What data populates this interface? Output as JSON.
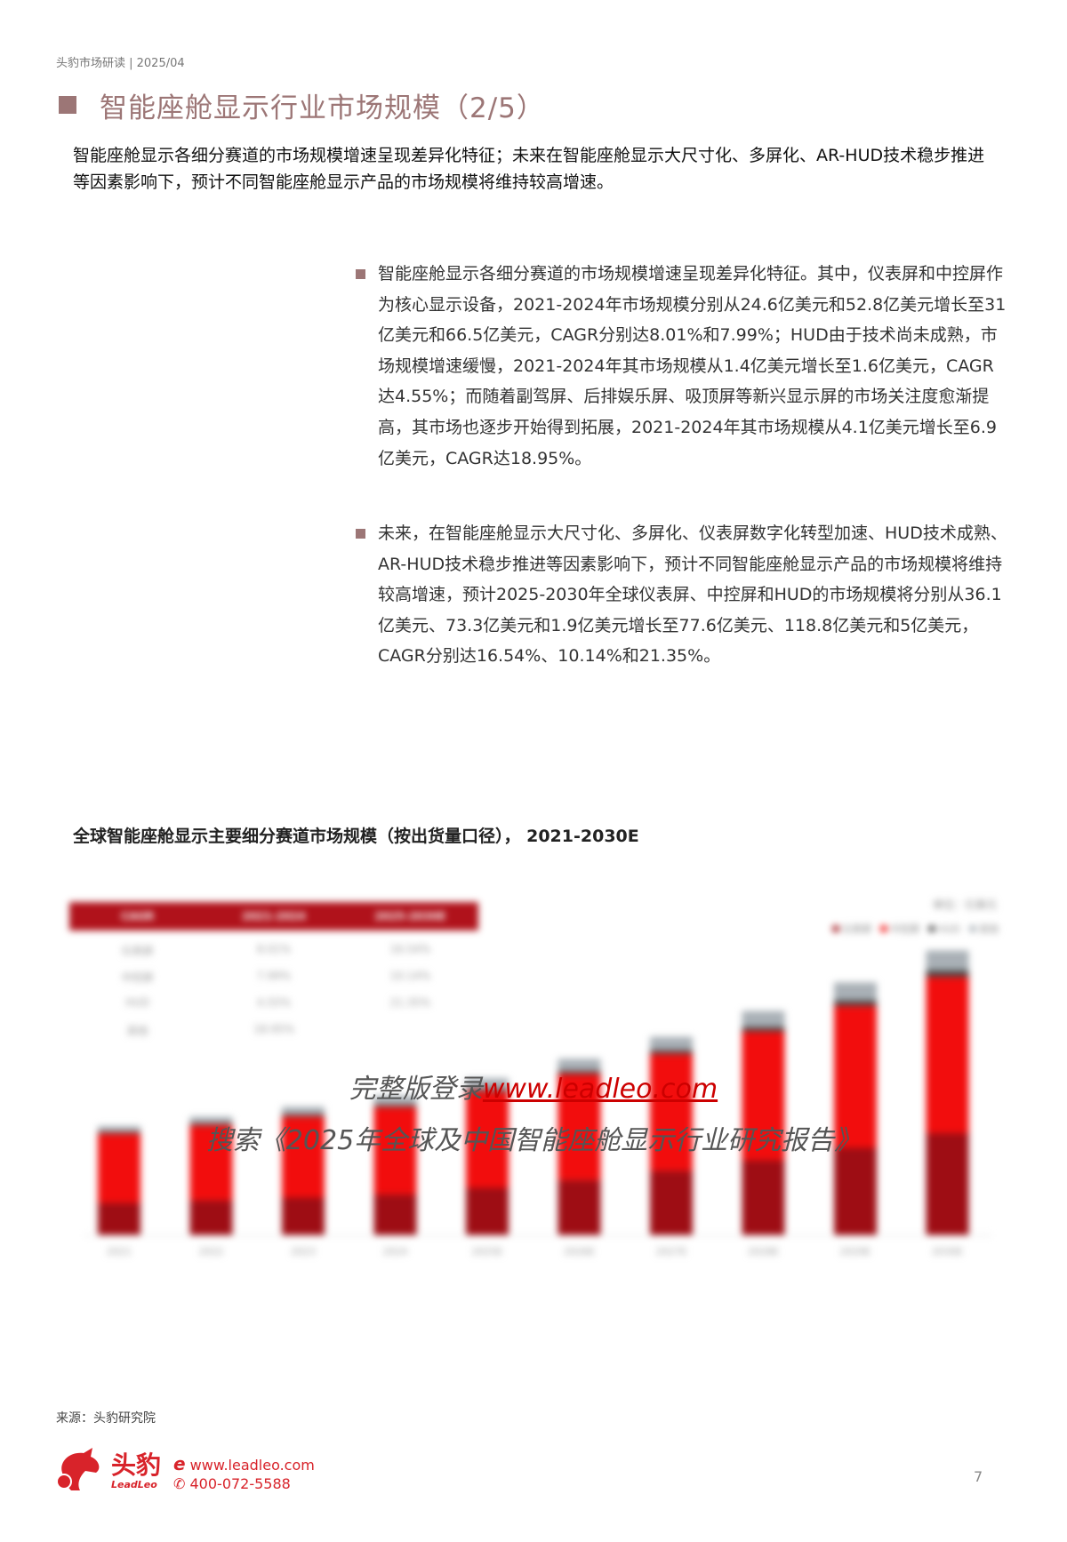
{
  "header": {
    "text": "头豹市场研读 | 2025/04"
  },
  "title": "智能座舱显示行业市场规模（2/5）",
  "intro": "智能座舱显示各细分赛道的市场规模增速呈现差异化特征；未来在智能座舱显示大尺寸化、多屏化、AR-HUD技术稳步推进等因素影响下，预计不同智能座舱显示产品的市场规模将维持较高增速。",
  "bullets": [
    "智能座舱显示各细分赛道的市场规模增速呈现差异化特征。其中，仪表屏和中控屏作为核心显示设备，2021-2024年市场规模分别从24.6亿美元和52.8亿美元增长至31亿美元和66.5亿美元，CAGR分别达8.01%和7.99%；HUD由于技术尚未成熟，市场规模增速缓慢，2021-2024年其市场规模从1.4亿美元增长至1.6亿美元，CAGR达4.55%；而随着副驾屏、后排娱乐屏、吸顶屏等新兴显示屏的市场关注度愈渐提高，其市场也逐步开始得到拓展，2021-2024年其市场规模从4.1亿美元增长至6.9亿美元，CAGR达18.95%。",
    "未来，在智能座舱显示大尺寸化、多屏化、仪表屏数字化转型加速、HUD技术成熟、AR-HUD技术稳步推进等因素影响下，预计不同智能座舱显示产品的市场规模将维持较高增速，预计2025-2030年全球仪表屏、中控屏和HUD的市场规模将分别从36.1亿美元、73.3亿美元和1.9亿美元增长至77.6亿美元、118.8亿美元和5亿美元，CAGR分别达16.54%、10.14%和21.35%。"
  ],
  "chart": {
    "title": "全球智能座舱显示主要细分赛道市场规模（按出货量口径），  2021-2030E",
    "unit": "单位：亿美元",
    "cagr_table": {
      "headers": [
        "CAGR",
        "2021-2024",
        "2025-2030E"
      ],
      "rows": [
        [
          "仪表屏",
          "8.01%",
          "16.54%"
        ],
        [
          "中控屏",
          "7.99%",
          "10.14%"
        ],
        [
          "HUD",
          "4.55%",
          "21.35%"
        ],
        [
          "其他",
          "18.95%",
          ""
        ]
      ]
    }
  },
  "chart_data": {
    "type": "bar",
    "stacked": true,
    "categories": [
      "2021",
      "2022",
      "2023",
      "2024",
      "2025E",
      "2026E",
      "2027E",
      "2028E",
      "2029E",
      "2030E"
    ],
    "series": [
      {
        "name": "仪表屏",
        "color": "#9e0d14",
        "values": [
          24.6,
          26.6,
          28.7,
          31.0,
          36.1,
          42.0,
          49.0,
          57.0,
          66.5,
          77.6
        ]
      },
      {
        "name": "中控屏",
        "color": "#f20d0d",
        "values": [
          52.8,
          57.0,
          61.6,
          66.5,
          73.3,
          80.7,
          88.9,
          97.9,
          107.9,
          118.8
        ]
      },
      {
        "name": "HUD",
        "color": "#4a4a4a",
        "values": [
          1.4,
          1.5,
          1.5,
          1.6,
          1.9,
          2.4,
          2.9,
          3.5,
          4.2,
          5.0
        ]
      },
      {
        "name": "其他",
        "color": "#a9b0b6",
        "values": [
          4.1,
          4.9,
          5.8,
          6.9,
          8.0,
          9.0,
          10.0,
          12.0,
          13.5,
          15.0
        ]
      }
    ],
    "ylabel": "单位：亿美元",
    "grid": false,
    "legend": "top-right"
  },
  "watermark": {
    "line1_prefix": "完整版登录",
    "line1_link": "www.leadleo.com",
    "line2": "搜索《2025年全球及中国智能座舱显示行业研究报告》"
  },
  "source": "来源：头豹研究院",
  "footer": {
    "logo_cn": "头豹",
    "logo_en": "LeadLeo",
    "website": "www.leadleo.com",
    "phone": "400-072-5588",
    "page": "7"
  },
  "colors": {
    "accent": "#9c7676",
    "brand_red": "#d8232a"
  }
}
